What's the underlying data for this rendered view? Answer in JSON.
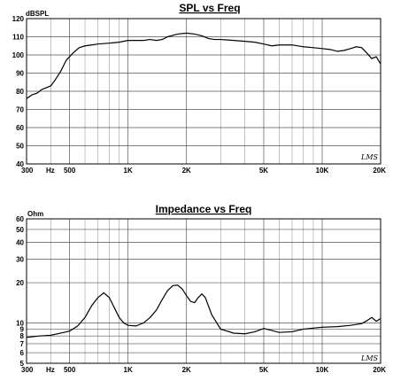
{
  "chart_data": [
    {
      "type": "line",
      "title": "SPL vs Freq",
      "y_unit": "dBSPL",
      "x_unit": "Hz",
      "x_scale": "log",
      "xlim": [
        300,
        20000
      ],
      "ylim": [
        40,
        120
      ],
      "grid": true,
      "brand": "LMS",
      "x_tick_labels": [
        {
          "value": 300,
          "label": "300"
        },
        {
          "value": 500,
          "label": "500"
        },
        {
          "value": 1000,
          "label": "1K"
        },
        {
          "value": 2000,
          "label": "2K"
        },
        {
          "value": 5000,
          "label": "5K"
        },
        {
          "value": 10000,
          "label": "10K"
        },
        {
          "value": 20000,
          "label": "20K"
        }
      ],
      "y_tick_labels": [
        {
          "value": 40,
          "label": "40"
        },
        {
          "value": 50,
          "label": "50"
        },
        {
          "value": 60,
          "label": "60"
        },
        {
          "value": 70,
          "label": "70"
        },
        {
          "value": 80,
          "label": "80"
        },
        {
          "value": 90,
          "label": "90"
        },
        {
          "value": 100,
          "label": "100"
        },
        {
          "value": 110,
          "label": "110"
        },
        {
          "value": 120,
          "label": "120"
        }
      ],
      "series": [
        {
          "x": [
            300,
            320,
            340,
            360,
            380,
            400,
            420,
            450,
            480,
            520,
            560,
            600,
            650,
            700,
            800,
            900,
            1000,
            1100,
            1200,
            1300,
            1400,
            1500,
            1600,
            1800,
            2000,
            2200,
            2400,
            2600,
            2800,
            3000,
            3500,
            4000,
            4500,
            5000,
            5500,
            6000,
            7000,
            8000,
            9000,
            10000,
            11000,
            12000,
            13000,
            14000,
            15000,
            16000,
            17000,
            18000,
            19000,
            20000
          ],
          "y": [
            76,
            78,
            79,
            81,
            82,
            83,
            86,
            91,
            97,
            101,
            104,
            105,
            105.5,
            106,
            106.5,
            107,
            108,
            108,
            108,
            108.5,
            108,
            108.5,
            110,
            111.5,
            112,
            111.5,
            110.5,
            109,
            108.5,
            108.5,
            108,
            107.5,
            107,
            106,
            105,
            105.5,
            105.5,
            104.5,
            104,
            103.5,
            103,
            102,
            102.5,
            103.5,
            104.5,
            104,
            101,
            98,
            99,
            95
          ]
        }
      ]
    },
    {
      "type": "line",
      "title": "Impedance vs Freq",
      "y_unit": "Ohm",
      "x_unit": "Hz",
      "x_scale": "log",
      "y_scale": "log",
      "xlim": [
        300,
        20000
      ],
      "ylim": [
        5,
        60
      ],
      "grid": true,
      "brand": "LMS",
      "x_tick_labels": [
        {
          "value": 300,
          "label": "300"
        },
        {
          "value": 500,
          "label": "500"
        },
        {
          "value": 1000,
          "label": "1K"
        },
        {
          "value": 2000,
          "label": "2K"
        },
        {
          "value": 5000,
          "label": "5K"
        },
        {
          "value": 10000,
          "label": "10K"
        },
        {
          "value": 20000,
          "label": "20K"
        }
      ],
      "y_tick_labels": [
        {
          "value": 5,
          "label": "5"
        },
        {
          "value": 6,
          "label": "6"
        },
        {
          "value": 7,
          "label": "7"
        },
        {
          "value": 8,
          "label": "8"
        },
        {
          "value": 9,
          "label": "9"
        },
        {
          "value": 10,
          "label": "10"
        },
        {
          "value": 20,
          "label": "20"
        },
        {
          "value": 30,
          "label": "30"
        },
        {
          "value": 40,
          "label": "40"
        },
        {
          "value": 50,
          "label": "50"
        },
        {
          "value": 60,
          "label": "60"
        }
      ],
      "series": [
        {
          "x": [
            300,
            350,
            400,
            450,
            500,
            550,
            600,
            650,
            700,
            750,
            800,
            850,
            900,
            950,
            1000,
            1100,
            1200,
            1300,
            1400,
            1500,
            1600,
            1700,
            1800,
            1900,
            2000,
            2100,
            2200,
            2300,
            2400,
            2500,
            2700,
            3000,
            3500,
            4000,
            4500,
            5000,
            5500,
            6000,
            7000,
            8000,
            10000,
            12000,
            14000,
            16000,
            17000,
            18000,
            19000,
            20000
          ],
          "y": [
            7.8,
            8.0,
            8.1,
            8.4,
            8.7,
            9.5,
            11,
            13.5,
            15.5,
            16.8,
            15.5,
            13,
            11,
            10,
            9.6,
            9.5,
            10,
            11,
            12.5,
            15,
            17.5,
            19,
            19.2,
            18,
            16,
            14.5,
            14.2,
            15.5,
            16.5,
            15.5,
            11.5,
            9,
            8.4,
            8.3,
            8.6,
            9.1,
            8.8,
            8.5,
            8.6,
            9.0,
            9.3,
            9.4,
            9.6,
            9.9,
            10.4,
            11.0,
            10.3,
            10.8
          ]
        }
      ]
    }
  ]
}
